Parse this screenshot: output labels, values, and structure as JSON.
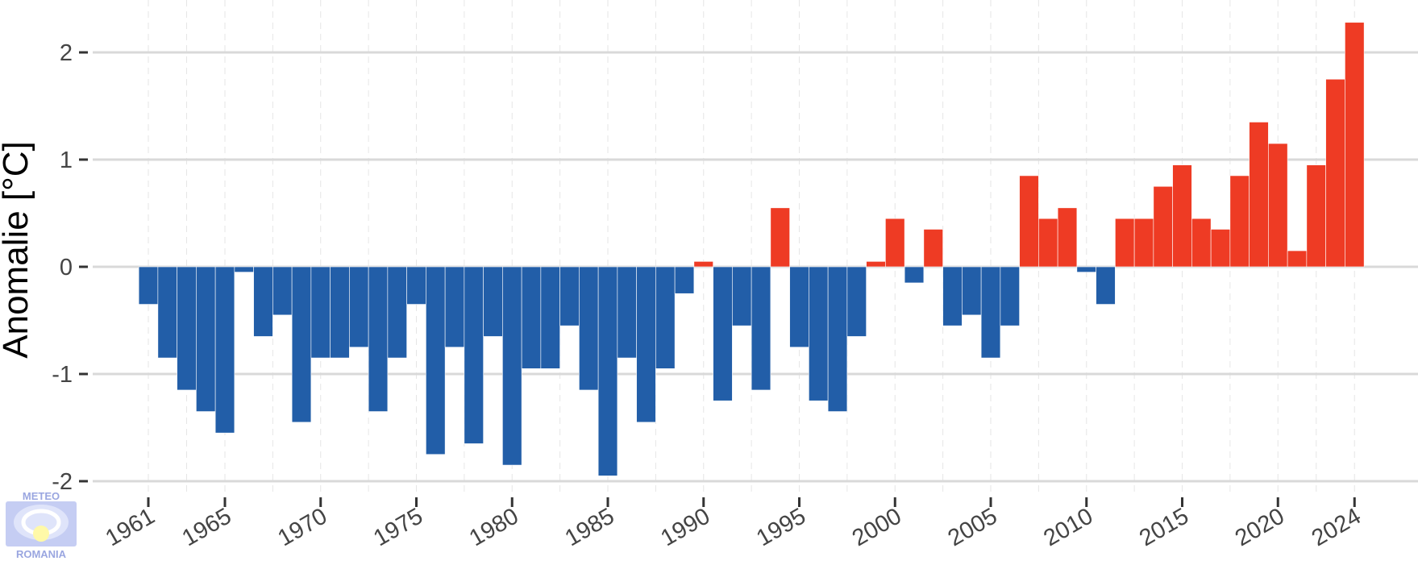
{
  "chart_data": {
    "type": "bar",
    "title": "",
    "xlabel": "",
    "ylabel": "Anomalie [°C]",
    "ylim": [
      -2.1,
      2.4
    ],
    "yticks": [
      2,
      1,
      0,
      -1,
      -2
    ],
    "ytick_labels": [
      "2",
      "1",
      "0",
      "-1",
      "-2"
    ],
    "xticks": [
      1961,
      1965,
      1970,
      1975,
      1980,
      1985,
      1990,
      1995,
      2000,
      2005,
      2010,
      2015,
      2020,
      2024
    ],
    "xtick_labels": [
      "1961",
      "1965",
      "1970",
      "1975",
      "1980",
      "1985",
      "1990",
      "1995",
      "2000",
      "2005",
      "2010",
      "2015",
      "2020",
      "2024"
    ],
    "grid": true,
    "legend": "none",
    "colors": {
      "positive": "#ee3b24",
      "negative": "#225ea8",
      "grid": "#d9d9d9",
      "minor_grid": "#e6e6e6"
    },
    "years": [
      1961,
      1962,
      1963,
      1964,
      1965,
      1966,
      1967,
      1968,
      1969,
      1970,
      1971,
      1972,
      1973,
      1974,
      1975,
      1976,
      1977,
      1978,
      1979,
      1980,
      1981,
      1982,
      1983,
      1984,
      1985,
      1986,
      1987,
      1988,
      1989,
      1990,
      1991,
      1992,
      1993,
      1994,
      1995,
      1996,
      1997,
      1998,
      1999,
      2000,
      2001,
      2002,
      2003,
      2004,
      2005,
      2006,
      2007,
      2008,
      2009,
      2010,
      2011,
      2012,
      2013,
      2014,
      2015,
      2016,
      2017,
      2018,
      2019,
      2020,
      2021,
      2022,
      2023,
      2024
    ],
    "values": [
      -0.35,
      -0.85,
      -1.15,
      -1.35,
      -1.55,
      -0.05,
      -0.65,
      -0.45,
      -1.45,
      -0.85,
      -0.85,
      -0.75,
      -1.35,
      -0.85,
      -0.35,
      -1.75,
      -0.75,
      -1.65,
      -0.65,
      -1.85,
      -0.95,
      -0.95,
      -0.55,
      -1.15,
      -1.95,
      -0.85,
      -1.45,
      -0.95,
      -0.25,
      0.05,
      -1.25,
      -0.55,
      -1.15,
      0.55,
      -0.75,
      -1.25,
      -1.35,
      -0.65,
      0.05,
      0.45,
      -0.15,
      0.35,
      -0.55,
      -0.45,
      -0.85,
      -0.55,
      0.85,
      0.45,
      0.55,
      -0.05,
      -0.35,
      0.45,
      0.45,
      0.75,
      0.95,
      0.45,
      0.35,
      0.85,
      1.35,
      1.15,
      0.15,
      0.95,
      1.75,
      2.28
    ]
  },
  "logo": {
    "top_text": "METEO",
    "bottom_text": "ROMANIA"
  }
}
